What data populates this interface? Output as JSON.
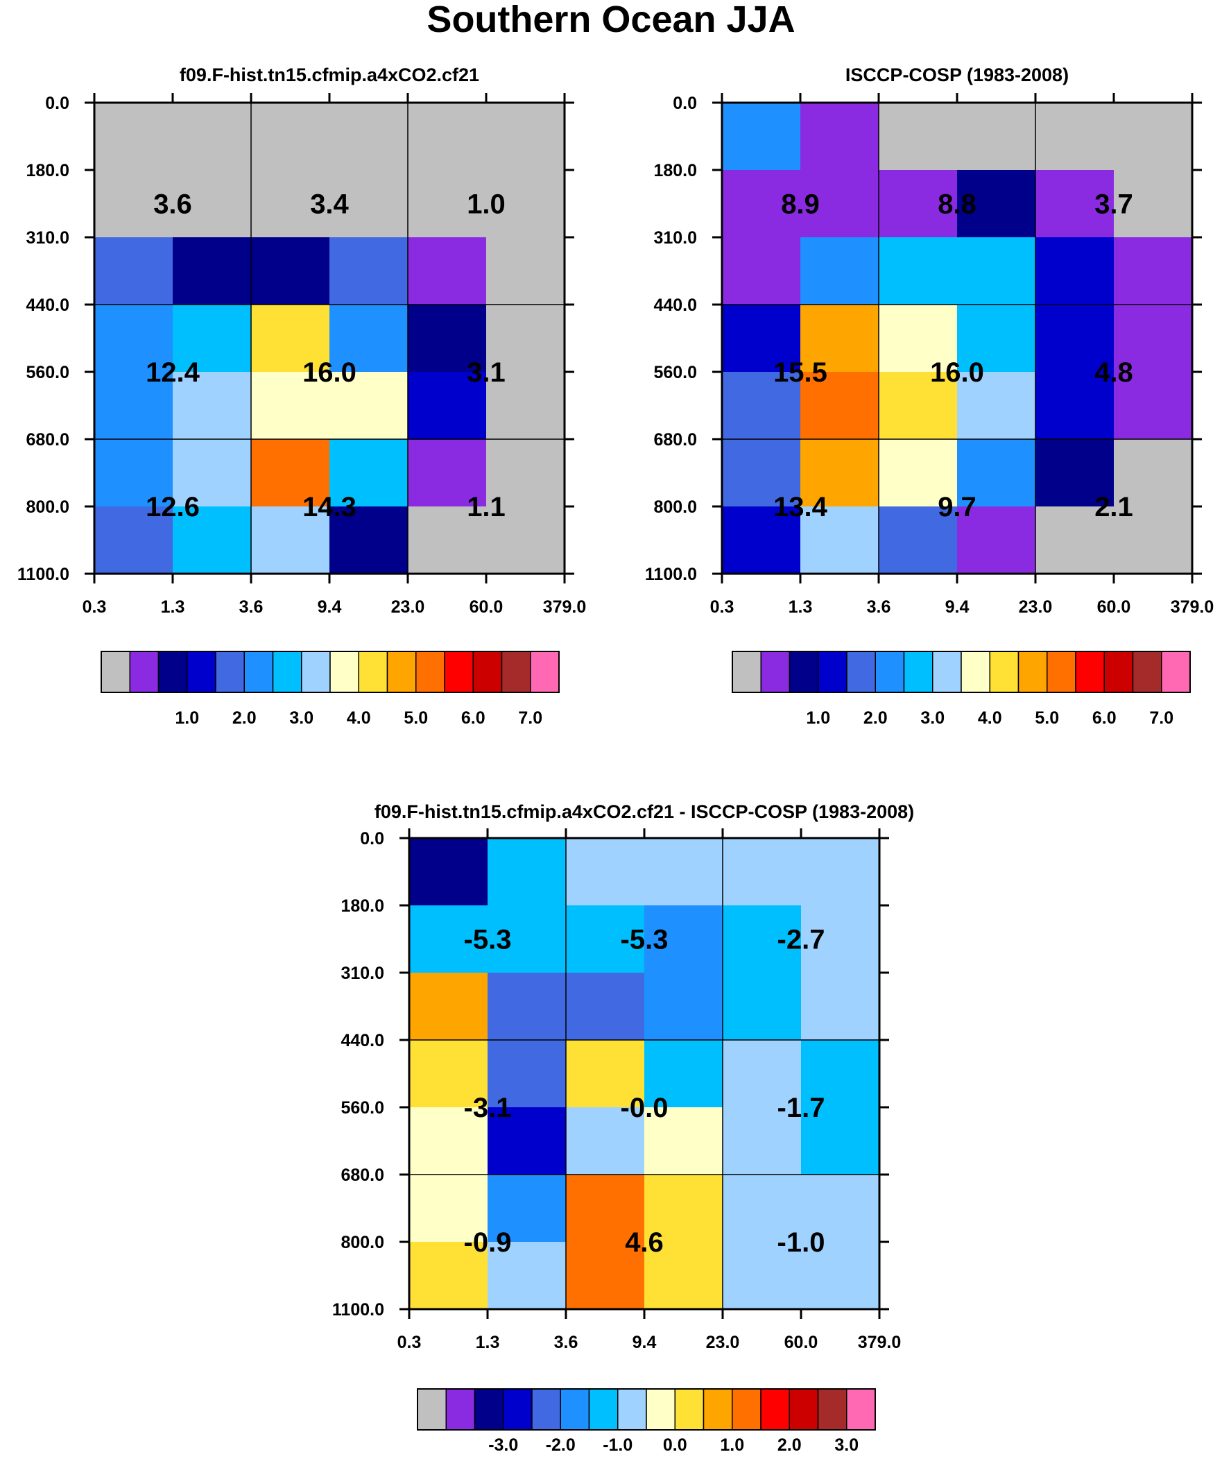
{
  "figure": {
    "title": "Southern Ocean JJA"
  },
  "tau_ticks": [
    "0.3",
    "1.3",
    "3.6",
    "9.4",
    "23.0",
    "60.0",
    "379.0"
  ],
  "pres_ticks": [
    "0.0",
    "180.0",
    "310.0",
    "440.0",
    "560.0",
    "680.0",
    "800.0",
    "1100.0"
  ],
  "colorbar_colors": [
    "#c0c0c0",
    "#8a2be2",
    "#00008b",
    "#0000cd",
    "#4169e1",
    "#1e90ff",
    "#00bfff",
    "#a0d2ff",
    "#ffffc8",
    "#ffe135",
    "#ffa500",
    "#ff7000",
    "#ff0000",
    "#cd0000",
    "#a52a2a",
    "#ff69b4"
  ],
  "chart_data": [
    {
      "type": "heatmap",
      "title": "f09.F-hist.tn15.cfmip.a4xCO2.cf21",
      "xlabel": "",
      "ylabel": "",
      "x_ticks": [
        "0.3",
        "1.3",
        "3.6",
        "9.4",
        "23.0",
        "60.0",
        "379.0"
      ],
      "y_ticks": [
        "0.0",
        "180.0",
        "310.0",
        "440.0",
        "560.0",
        "680.0",
        "800.0",
        "1100.0"
      ],
      "cell_color_index": [
        [
          0,
          0,
          0,
          0,
          0,
          0
        ],
        [
          0,
          0,
          0,
          0,
          0,
          0
        ],
        [
          4,
          2,
          2,
          4,
          1,
          0
        ],
        [
          5,
          6,
          9,
          5,
          2,
          0
        ],
        [
          5,
          7,
          8,
          8,
          3,
          0
        ],
        [
          5,
          7,
          11,
          6,
          1,
          0
        ],
        [
          4,
          6,
          7,
          2,
          0,
          0
        ]
      ],
      "box_values": [
        [
          "3.6",
          "3.4",
          "1.0"
        ],
        [
          "12.4",
          "16.0",
          "3.1"
        ],
        [
          "12.6",
          "14.3",
          "1.1"
        ]
      ],
      "colorbar": {
        "labels": [
          "1.0",
          "2.0",
          "3.0",
          "4.0",
          "5.0",
          "6.0",
          "7.0"
        ]
      }
    },
    {
      "type": "heatmap",
      "title": "ISCCP-COSP (1983-2008)",
      "xlabel": "",
      "ylabel": "",
      "x_ticks": [
        "0.3",
        "1.3",
        "3.6",
        "9.4",
        "23.0",
        "60.0",
        "379.0"
      ],
      "y_ticks": [
        "0.0",
        "180.0",
        "310.0",
        "440.0",
        "560.0",
        "680.0",
        "800.0",
        "1100.0"
      ],
      "cell_color_index": [
        [
          5,
          1,
          0,
          0,
          0,
          0
        ],
        [
          1,
          1,
          1,
          2,
          1,
          0
        ],
        [
          1,
          5,
          6,
          6,
          3,
          1
        ],
        [
          3,
          10,
          8,
          6,
          3,
          1
        ],
        [
          4,
          11,
          9,
          7,
          3,
          1
        ],
        [
          4,
          10,
          8,
          5,
          2,
          0
        ],
        [
          3,
          7,
          4,
          1,
          0,
          0
        ]
      ],
      "box_values": [
        [
          "8.9",
          "8.8",
          "3.7"
        ],
        [
          "15.5",
          "16.0",
          "4.8"
        ],
        [
          "13.4",
          "9.7",
          "2.1"
        ]
      ],
      "colorbar": {
        "labels": [
          "1.0",
          "2.0",
          "3.0",
          "4.0",
          "5.0",
          "6.0",
          "7.0"
        ]
      }
    },
    {
      "type": "heatmap",
      "title": "f09.F-hist.tn15.cfmip.a4xCO2.cf21 - ISCCP-COSP (1983-2008)",
      "xlabel": "",
      "ylabel": "",
      "x_ticks": [
        "0.3",
        "1.3",
        "3.6",
        "9.4",
        "23.0",
        "60.0",
        "379.0"
      ],
      "y_ticks": [
        "0.0",
        "180.0",
        "310.0",
        "440.0",
        "560.0",
        "680.0",
        "800.0",
        "1100.0"
      ],
      "cell_color_index": [
        [
          2,
          6,
          7,
          7,
          7,
          7
        ],
        [
          6,
          6,
          6,
          5,
          6,
          7
        ],
        [
          10,
          4,
          4,
          5,
          6,
          7
        ],
        [
          9,
          4,
          9,
          6,
          7,
          6
        ],
        [
          8,
          3,
          7,
          8,
          7,
          6
        ],
        [
          8,
          5,
          11,
          9,
          7,
          7
        ],
        [
          9,
          7,
          11,
          9,
          7,
          7
        ]
      ],
      "box_values": [
        [
          "-5.3",
          "-5.3",
          "-2.7"
        ],
        [
          "-3.1",
          "-0.0",
          "-1.7"
        ],
        [
          "-0.9",
          "4.6",
          "-1.0"
        ]
      ],
      "colorbar": {
        "labels": [
          "-3.0",
          "-2.0",
          "-1.0",
          "0.0",
          "1.0",
          "2.0",
          "3.0"
        ]
      }
    }
  ]
}
